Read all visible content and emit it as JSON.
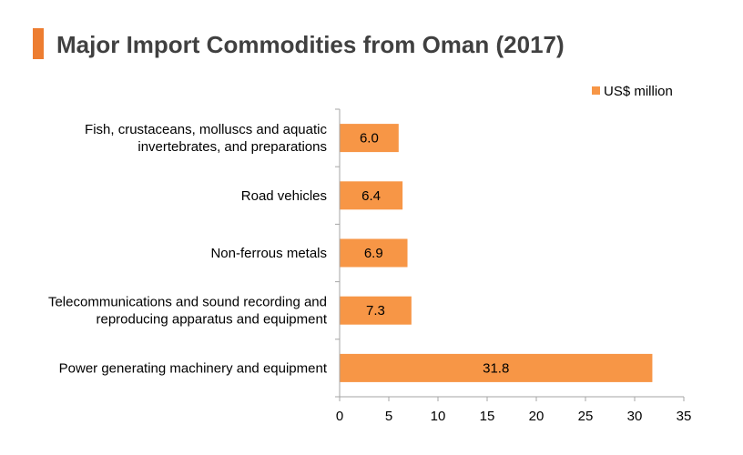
{
  "title": "Major Import Commodities from Oman (2017)",
  "colors": {
    "accent": "#ED7D31",
    "bar": "#F79646",
    "axis": "#A6A6A6",
    "title": "#404040"
  },
  "chart_data": {
    "type": "bar",
    "orientation": "horizontal",
    "title": "Major Import Commodities from Oman (2017)",
    "categories": [
      "Fish, crustaceans, molluscs and aquatic invertebrates, and preparations",
      "Road vehicles",
      "Non-ferrous metals",
      "Telecommunications and sound recording and reproducing apparatus and equipment",
      "Power generating machinery and equipment"
    ],
    "category_lines": [
      [
        "Fish, crustaceans, molluscs and aquatic",
        "invertebrates, and preparations"
      ],
      [
        "Road vehicles"
      ],
      [
        "Non-ferrous metals"
      ],
      [
        "Telecommunications and sound recording and",
        "reproducing apparatus and equipment"
      ],
      [
        "Power generating machinery and equipment"
      ]
    ],
    "series": [
      {
        "name": "US$ million",
        "values": [
          6.0,
          6.4,
          6.9,
          7.3,
          31.8
        ],
        "labels": [
          "6.0",
          "6.4",
          "6.9",
          "7.3",
          "31.8"
        ]
      }
    ],
    "xlim": [
      0,
      35
    ],
    "xticks": [
      0,
      5,
      10,
      15,
      20,
      25,
      30,
      35
    ],
    "legend": "top-right",
    "grid": false
  }
}
